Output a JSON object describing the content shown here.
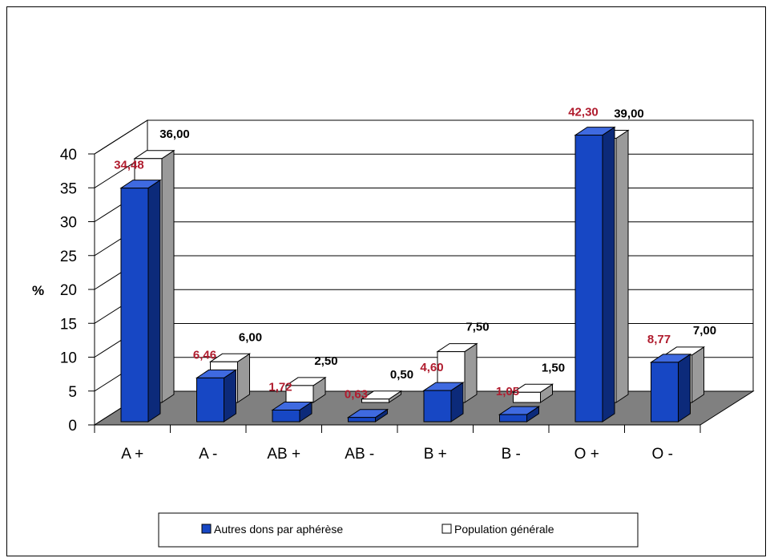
{
  "chart_data": {
    "type": "bar",
    "categories": [
      "A +",
      "A -",
      "AB +",
      "AB -",
      "B +",
      "B -",
      "O +",
      "O -"
    ],
    "series": [
      {
        "name": "Autres dons par aphérèse",
        "values": [
          34.48,
          6.46,
          1.72,
          0.63,
          4.6,
          1.05,
          42.3,
          8.77
        ],
        "labels": [
          "34,48",
          "6,46",
          "1,72",
          "0,63",
          "4,60",
          "1,05",
          "42,30",
          "8,77"
        ],
        "color": "#1747c4"
      },
      {
        "name": "Population générale",
        "values": [
          36.0,
          6.0,
          2.5,
          0.5,
          7.5,
          1.5,
          39.0,
          7.0
        ],
        "labels": [
          "36,00",
          "6,00",
          "2,50",
          "0,50",
          "7,50",
          "1,50",
          "39,00",
          "7,00"
        ],
        "color": "#ffffff"
      }
    ],
    "title": "",
    "xlabel": "",
    "ylabel": "%",
    "ylim": [
      0,
      40
    ],
    "yticks": [
      "0",
      "5",
      "10",
      "15",
      "20",
      "25",
      "30",
      "35",
      "40"
    ],
    "grid": true,
    "style": "3d-clustered-column",
    "floor_color": "#808080",
    "legend_position": "bottom"
  }
}
